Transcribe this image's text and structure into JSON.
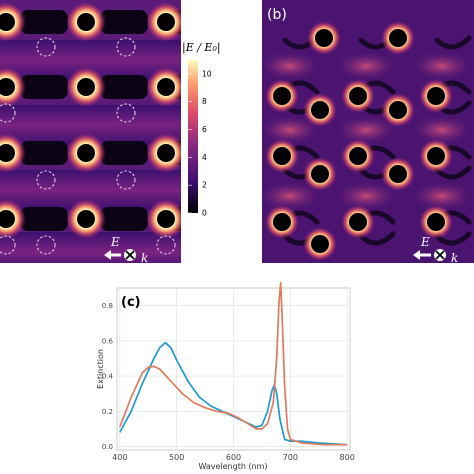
{
  "panel_b": {
    "label": "(b)"
  },
  "panel_c": {
    "label": "(c)"
  },
  "colorbar": {
    "title": "|E / E₀|",
    "ticks": [
      "10",
      "8",
      "6",
      "4",
      "2",
      "0"
    ],
    "colors": [
      "#000000",
      "#3b0f70",
      "#8c2981",
      "#de4968",
      "#fe9f6d",
      "#fcfdbf"
    ]
  },
  "field_annotation": {
    "e_label": "E",
    "k_label": "k"
  },
  "chart_data": {
    "type": "line",
    "title": "",
    "xlabel": "Wavelength (nm)",
    "ylabel": "Extinction",
    "xlim": [
      395,
      805
    ],
    "ylim": [
      -0.02,
      0.9
    ],
    "xticks": [
      "400",
      "500",
      "600",
      "700",
      "800"
    ],
    "yticks": [
      "0.0",
      "0.2",
      "0.4",
      "0.6",
      "0.8"
    ],
    "grid": true,
    "series": [
      {
        "color": "#1f9bd1",
        "points": [
          [
            400,
            0.08
          ],
          [
            420,
            0.2
          ],
          [
            440,
            0.36
          ],
          [
            460,
            0.5
          ],
          [
            470,
            0.56
          ],
          [
            480,
            0.59
          ],
          [
            490,
            0.56
          ],
          [
            500,
            0.49
          ],
          [
            520,
            0.37
          ],
          [
            540,
            0.28
          ],
          [
            560,
            0.23
          ],
          [
            580,
            0.2
          ],
          [
            600,
            0.17
          ],
          [
            620,
            0.14
          ],
          [
            640,
            0.11
          ],
          [
            650,
            0.12
          ],
          [
            660,
            0.2
          ],
          [
            668,
            0.32
          ],
          [
            672,
            0.35
          ],
          [
            676,
            0.3
          ],
          [
            682,
            0.15
          ],
          [
            690,
            0.04
          ],
          [
            700,
            0.03
          ],
          [
            720,
            0.03
          ],
          [
            750,
            0.02
          ],
          [
            800,
            0.01
          ]
        ]
      },
      {
        "color": "#e07a5f",
        "points": [
          [
            400,
            0.11
          ],
          [
            420,
            0.28
          ],
          [
            440,
            0.42
          ],
          [
            450,
            0.45
          ],
          [
            460,
            0.455
          ],
          [
            470,
            0.44
          ],
          [
            490,
            0.37
          ],
          [
            510,
            0.3
          ],
          [
            530,
            0.25
          ],
          [
            550,
            0.22
          ],
          [
            570,
            0.2
          ],
          [
            590,
            0.19
          ],
          [
            610,
            0.16
          ],
          [
            630,
            0.12
          ],
          [
            640,
            0.1
          ],
          [
            650,
            0.1
          ],
          [
            660,
            0.13
          ],
          [
            670,
            0.25
          ],
          [
            676,
            0.5
          ],
          [
            680,
            0.82
          ],
          [
            683,
            0.93
          ],
          [
            686,
            0.7
          ],
          [
            690,
            0.35
          ],
          [
            695,
            0.1
          ],
          [
            700,
            0.04
          ],
          [
            720,
            0.02
          ],
          [
            760,
            0.01
          ],
          [
            800,
            0.01
          ]
        ]
      }
    ]
  }
}
